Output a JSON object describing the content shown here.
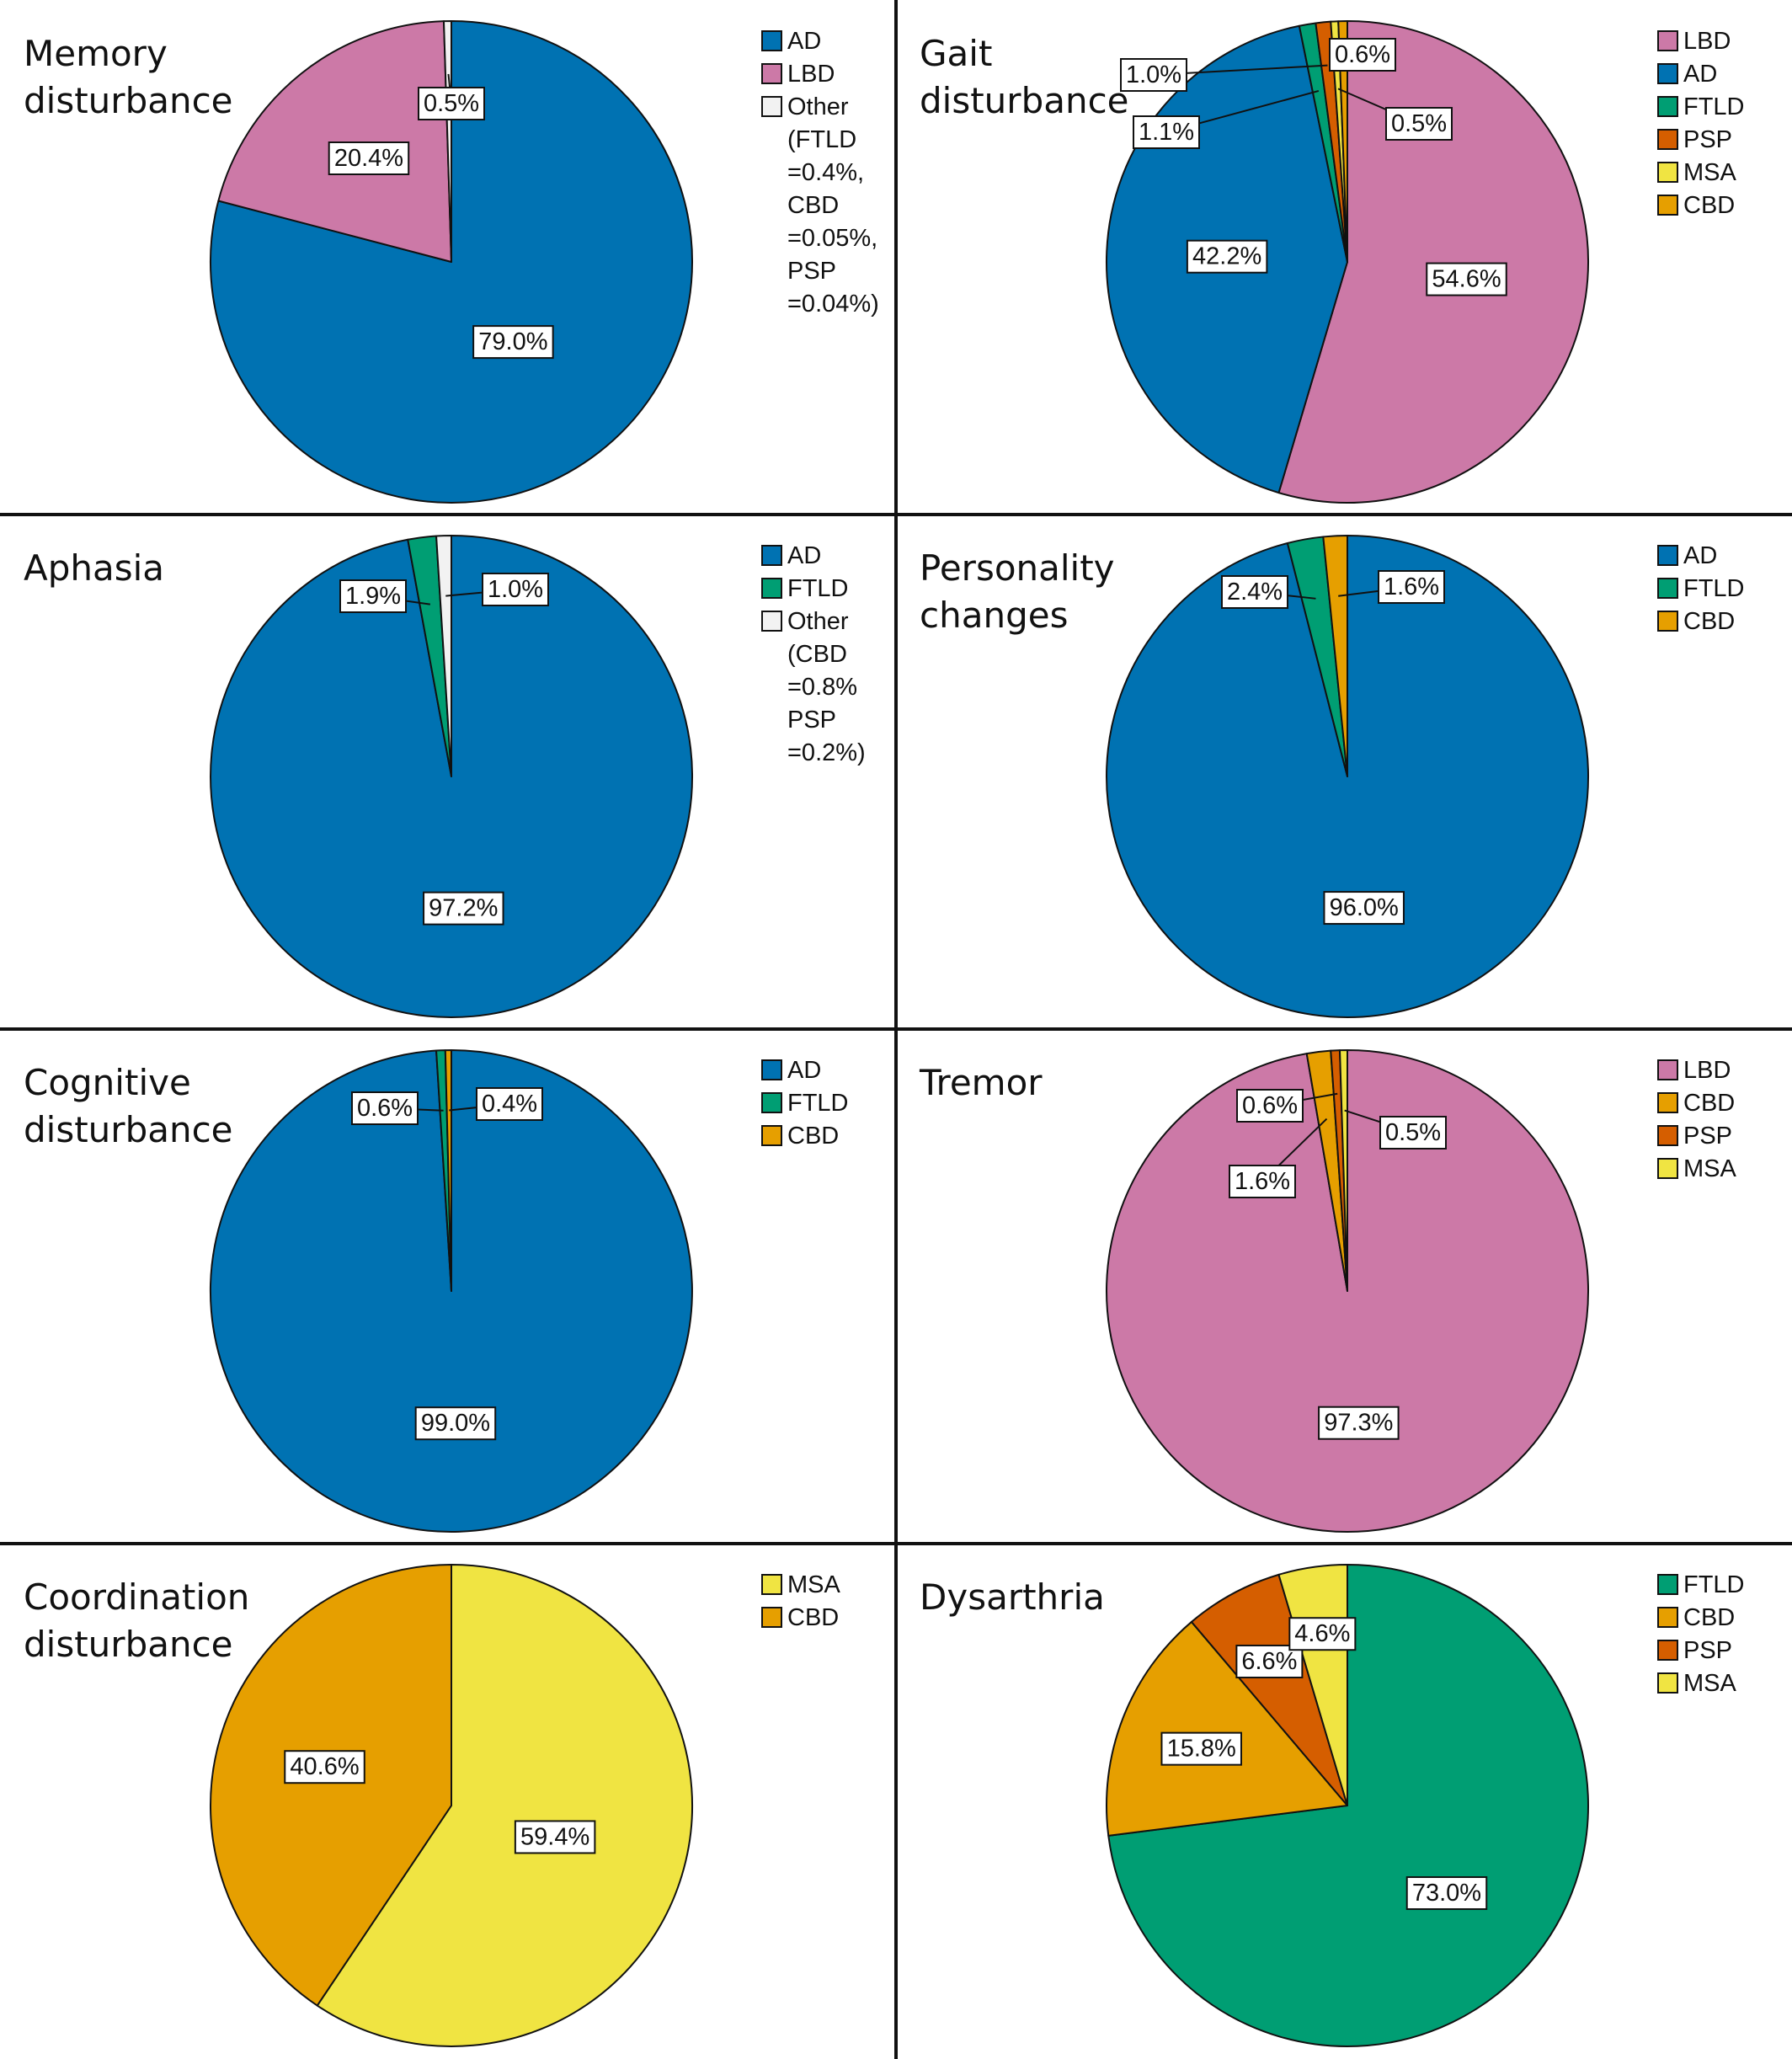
{
  "chart_data": [
    {
      "type": "pie",
      "title": "Memory\ndisturbance",
      "legend": [
        {
          "label": "AD",
          "color": "#0072b2"
        },
        {
          "label": "LBD",
          "color": "#cc79a7"
        },
        {
          "label": "Other\n(FTLD\n=0.4%,\nCBD\n=0.05%,\nPSP\n=0.04%)",
          "color": "#f2f2f2"
        }
      ],
      "slices": [
        {
          "name": "AD",
          "value": 79.0,
          "label": "79.0%",
          "color": "#0072b2"
        },
        {
          "name": "LBD",
          "value": 20.4,
          "label": "20.4%",
          "color": "#cc79a7"
        },
        {
          "name": "Other",
          "value": 0.5,
          "label": "0.5%",
          "color": "#f2f2f2"
        }
      ]
    },
    {
      "type": "pie",
      "title": "Gait\ndisturbance",
      "legend": [
        {
          "label": "LBD",
          "color": "#cc79a7"
        },
        {
          "label": "AD",
          "color": "#0072b2"
        },
        {
          "label": "FTLD",
          "color": "#009e73"
        },
        {
          "label": "PSP",
          "color": "#d55e00"
        },
        {
          "label": "MSA",
          "color": "#f0e442"
        },
        {
          "label": "CBD",
          "color": "#e69f00"
        }
      ],
      "slices": [
        {
          "name": "LBD",
          "value": 54.6,
          "label": "54.6%",
          "color": "#cc79a7"
        },
        {
          "name": "AD",
          "value": 42.2,
          "label": "42.2%",
          "color": "#0072b2"
        },
        {
          "name": "FTLD",
          "value": 1.1,
          "label": "1.1%",
          "color": "#009e73"
        },
        {
          "name": "PSP",
          "value": 1.0,
          "label": "1.0%",
          "color": "#d55e00"
        },
        {
          "name": "MSA",
          "value": 0.5,
          "label": "0.5%",
          "color": "#f0e442"
        },
        {
          "name": "CBD",
          "value": 0.6,
          "label": "0.6%",
          "color": "#e69f00"
        }
      ]
    },
    {
      "type": "pie",
      "title": "Aphasia",
      "legend": [
        {
          "label": "AD",
          "color": "#0072b2"
        },
        {
          "label": "FTLD",
          "color": "#009e73"
        },
        {
          "label": "Other\n(CBD\n=0.8%\nPSP\n=0.2%)",
          "color": "#f2f2f2"
        }
      ],
      "slices": [
        {
          "name": "AD",
          "value": 97.2,
          "label": "97.2%",
          "color": "#0072b2"
        },
        {
          "name": "FTLD",
          "value": 1.9,
          "label": "1.9%",
          "color": "#009e73"
        },
        {
          "name": "Other",
          "value": 1.0,
          "label": "1.0%",
          "color": "#f2f2f2"
        }
      ]
    },
    {
      "type": "pie",
      "title": "Personality\nchanges",
      "legend": [
        {
          "label": "AD",
          "color": "#0072b2"
        },
        {
          "label": "FTLD",
          "color": "#009e73"
        },
        {
          "label": "CBD",
          "color": "#e69f00"
        }
      ],
      "slices": [
        {
          "name": "AD",
          "value": 96.0,
          "label": "96.0%",
          "color": "#0072b2"
        },
        {
          "name": "FTLD",
          "value": 2.4,
          "label": "2.4%",
          "color": "#009e73"
        },
        {
          "name": "CBD",
          "value": 1.6,
          "label": "1.6%",
          "color": "#e69f00"
        }
      ]
    },
    {
      "type": "pie",
      "title": "Cognitive\ndisturbance",
      "legend": [
        {
          "label": "AD",
          "color": "#0072b2"
        },
        {
          "label": "FTLD",
          "color": "#009e73"
        },
        {
          "label": "CBD",
          "color": "#e69f00"
        }
      ],
      "slices": [
        {
          "name": "AD",
          "value": 99.0,
          "label": "99.0%",
          "color": "#0072b2"
        },
        {
          "name": "FTLD",
          "value": 0.6,
          "label": "0.6%",
          "color": "#009e73"
        },
        {
          "name": "CBD",
          "value": 0.4,
          "label": "0.4%",
          "color": "#e69f00"
        }
      ]
    },
    {
      "type": "pie",
      "title": "Tremor",
      "legend": [
        {
          "label": "LBD",
          "color": "#cc79a7"
        },
        {
          "label": "CBD",
          "color": "#e69f00"
        },
        {
          "label": "PSP",
          "color": "#d55e00"
        },
        {
          "label": "MSA",
          "color": "#f0e442"
        }
      ],
      "slices": [
        {
          "name": "LBD",
          "value": 97.3,
          "label": "97.3%",
          "color": "#cc79a7"
        },
        {
          "name": "CBD",
          "value": 1.6,
          "label": "1.6%",
          "color": "#e69f00"
        },
        {
          "name": "PSP",
          "value": 0.6,
          "label": "0.6%",
          "color": "#d55e00"
        },
        {
          "name": "MSA",
          "value": 0.5,
          "label": "0.5%",
          "color": "#f0e442"
        }
      ]
    },
    {
      "type": "pie",
      "title": "Coordination\ndisturbance",
      "legend": [
        {
          "label": "MSA",
          "color": "#f0e442"
        },
        {
          "label": "CBD",
          "color": "#e69f00"
        }
      ],
      "slices": [
        {
          "name": "MSA",
          "value": 59.4,
          "label": "59.4%",
          "color": "#f0e442"
        },
        {
          "name": "CBD",
          "value": 40.6,
          "label": "40.6%",
          "color": "#e69f00"
        }
      ]
    },
    {
      "type": "pie",
      "title": "Dysarthria",
      "legend": [
        {
          "label": "FTLD",
          "color": "#009e73"
        },
        {
          "label": "CBD",
          "color": "#e69f00"
        },
        {
          "label": "PSP",
          "color": "#d55e00"
        },
        {
          "label": "MSA",
          "color": "#f0e442"
        }
      ],
      "slices": [
        {
          "name": "FTLD",
          "value": 73.0,
          "label": "73.0%",
          "color": "#009e73"
        },
        {
          "name": "CBD",
          "value": 15.8,
          "label": "15.8%",
          "color": "#e69f00"
        },
        {
          "name": "PSP",
          "value": 6.6,
          "label": "6.6%",
          "color": "#d55e00"
        },
        {
          "name": "MSA",
          "value": 4.6,
          "label": "4.6%",
          "color": "#f0e442"
        }
      ]
    }
  ]
}
